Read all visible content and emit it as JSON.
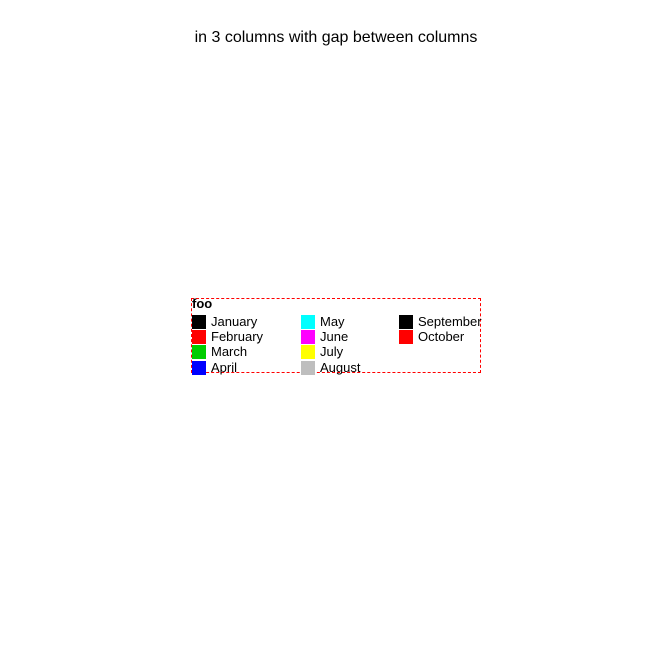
{
  "chart_data": {
    "type": "legend",
    "title": "in 3 columns with gap between columns",
    "legend": {
      "title": "foo",
      "columns": 3,
      "border_color": "#ff0000",
      "entries": [
        {
          "label": "January",
          "color": "#000000"
        },
        {
          "label": "February",
          "color": "#ff0000"
        },
        {
          "label": "March",
          "color": "#00cd00"
        },
        {
          "label": "April",
          "color": "#0000ff"
        },
        {
          "label": "May",
          "color": "#00ffff"
        },
        {
          "label": "June",
          "color": "#ff00ff"
        },
        {
          "label": "July",
          "color": "#ffff00"
        },
        {
          "label": "August",
          "color": "#bebebe"
        },
        {
          "label": "September",
          "color": "#000000"
        },
        {
          "label": "October",
          "color": "#ff0000"
        }
      ]
    }
  }
}
